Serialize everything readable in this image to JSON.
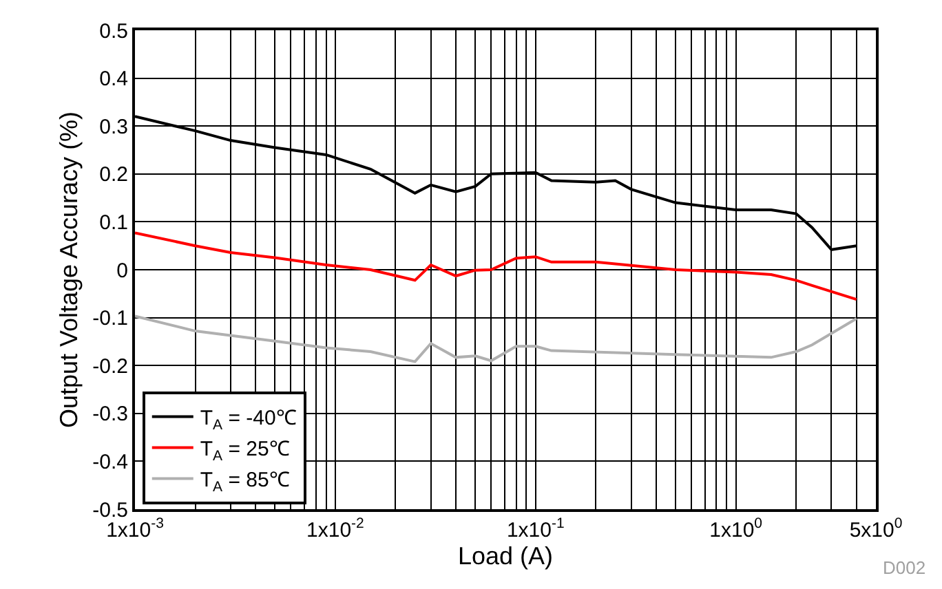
{
  "chart_data": {
    "type": "line",
    "xlabel": "Load (A)",
    "ylabel": "Output Voltage Accuracy (%)",
    "log": "x",
    "xlim": [
      0.001,
      5
    ],
    "ylim": [
      -0.5,
      0.5
    ],
    "xticks": [
      {
        "value": 0.001,
        "label": "1x10$^{-3}$"
      },
      {
        "value": 0.01,
        "label": "1x10$^{-2}$"
      },
      {
        "value": 0.1,
        "label": "1x10$^{-1}$"
      },
      {
        "value": 1,
        "label": "1x10$^{0}$"
      },
      {
        "value": 5,
        "label": "5x10$^{0}$"
      }
    ],
    "yticks": [
      -0.5,
      -0.4,
      -0.3,
      -0.2,
      -0.1,
      0,
      0.1,
      0.2,
      0.3,
      0.4,
      0.5
    ],
    "grid": true,
    "legend": "bottom left",
    "marker": "none",
    "line_style": "solid",
    "annotations": [
      "D002"
    ],
    "series": [
      {
        "name": "T$_{A}$ = -40℃",
        "color": "#000000",
        "x": [
          0.001,
          0.002,
          0.003,
          0.005,
          0.009,
          0.015,
          0.025,
          0.03,
          0.04,
          0.05,
          0.06,
          0.1,
          0.12,
          0.2,
          0.25,
          0.3,
          0.5,
          1,
          1.5,
          2,
          2.4,
          3,
          4
        ],
        "values": [
          0.32,
          0.29,
          0.27,
          0.255,
          0.24,
          0.21,
          0.16,
          0.177,
          0.163,
          0.174,
          0.2,
          0.203,
          0.186,
          0.183,
          0.186,
          0.168,
          0.14,
          0.125,
          0.125,
          0.117,
          0.088,
          0.042,
          0.05
        ]
      },
      {
        "name": "T$_{A}$ = 25℃",
        "color": "#ff0000",
        "x": [
          0.001,
          0.002,
          0.003,
          0.005,
          0.009,
          0.015,
          0.025,
          0.03,
          0.04,
          0.05,
          0.06,
          0.08,
          0.1,
          0.12,
          0.2,
          0.5,
          1,
          1.5,
          2,
          2.4,
          4
        ],
        "values": [
          0.077,
          0.05,
          0.036,
          0.025,
          0.01,
          0,
          -0.022,
          0.01,
          -0.013,
          -0.001,
          0,
          0.024,
          0.027,
          0.016,
          0.016,
          0,
          -0.005,
          -0.01,
          -0.022,
          -0.033,
          -0.062
        ]
      },
      {
        "name": "T$_{A}$ = 85℃",
        "color": "#b0b0b0",
        "x": [
          0.001,
          0.002,
          0.005,
          0.009,
          0.015,
          0.025,
          0.03,
          0.04,
          0.05,
          0.06,
          0.08,
          0.1,
          0.12,
          0.5,
          1.5,
          2,
          2.4,
          4
        ],
        "values": [
          -0.097,
          -0.128,
          -0.149,
          -0.163,
          -0.171,
          -0.192,
          -0.154,
          -0.183,
          -0.18,
          -0.19,
          -0.16,
          -0.16,
          -0.169,
          -0.177,
          -0.183,
          -0.171,
          -0.157,
          -0.102
        ]
      }
    ]
  }
}
